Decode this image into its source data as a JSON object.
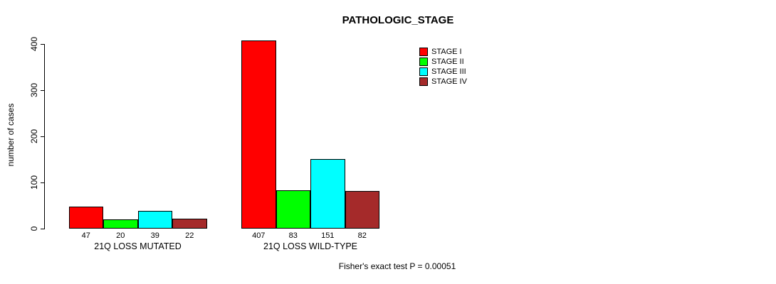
{
  "title": "PATHOLOGIC_STAGE",
  "ylabel": "number of cases",
  "footer": "Fisher's exact test P = 0.00051",
  "chart_data": {
    "type": "bar",
    "title": "PATHOLOGIC_STAGE",
    "xlabel": "",
    "ylabel": "number of cases",
    "ylim": [
      0,
      400
    ],
    "yticks": [
      0,
      100,
      200,
      300,
      400
    ],
    "grid": false,
    "legend_position": "top-right",
    "categories": [
      "21Q LOSS MUTATED",
      "21Q LOSS WILD-TYPE"
    ],
    "series": [
      {
        "name": "STAGE I",
        "color": "#FF0000",
        "values": [
          47,
          407
        ]
      },
      {
        "name": "STAGE II",
        "color": "#00FF00",
        "values": [
          20,
          83
        ]
      },
      {
        "name": "STAGE III",
        "color": "#00FFFF",
        "values": [
          39,
          151
        ]
      },
      {
        "name": "STAGE IV",
        "color": "#A52A2A",
        "values": [
          22,
          82
        ]
      }
    ],
    "bar_value_labels": [
      [
        47,
        20,
        39,
        22
      ],
      [
        407,
        83,
        151,
        82
      ]
    ],
    "annotation": "Fisher's exact test P = 0.00051"
  }
}
